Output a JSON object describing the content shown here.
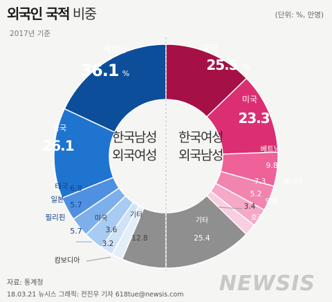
{
  "header": {
    "title_bold": "외국인 국적",
    "title_light": "비중",
    "unit": "(단위: %, 만명)",
    "basis": "2017년 기준"
  },
  "footer": {
    "source": "자료: 통계청",
    "credit": "18.03.21 뉴시스 그래픽: 전진우 기자 618tue@newsis.com",
    "logo": "NEWSIS"
  },
  "chart_data": [
    {
      "type": "pie",
      "title": "한국남성 외국여성",
      "center_label": [
        "한국남성",
        "외국여성"
      ],
      "slices": [
        {
          "label": "베트남",
          "value": 36.1,
          "value_text": "36.1",
          "unit": "%",
          "color": "#0c4e9a"
        },
        {
          "label": "중국",
          "value": 26.1,
          "value_text": "26.1",
          "color": "#1f74d0"
        },
        {
          "label": "태국",
          "value": 6.8,
          "value_text": "6.8",
          "color": "#4f90e0"
        },
        {
          "label": "일본",
          "value": 5.7,
          "value_text": "5.7",
          "color": "#7db0ea"
        },
        {
          "label": "필리핀",
          "value": 5.7,
          "value_text": "5.7",
          "color": "#a7cbf2"
        },
        {
          "label": "미국",
          "value": 3.6,
          "value_text": "3.6",
          "color": "#cfe2f8"
        },
        {
          "label": "캄보디아",
          "value": 3.2,
          "value_text": "3.2",
          "color": "#e4eef9"
        },
        {
          "label": "기타",
          "value": 12.8,
          "value_text": "12.8",
          "color": "#8f8f8f"
        }
      ]
    },
    {
      "type": "pie",
      "title": "한국여성 외국남성",
      "center_label": [
        "한국여성",
        "외국남성"
      ],
      "slices": [
        {
          "label": "중국",
          "value": 25.5,
          "value_text": "25.5",
          "unit": "%",
          "color": "#a51146"
        },
        {
          "label": "미국",
          "value": 23.3,
          "value_text": "23.3",
          "color": "#dc2e72"
        },
        {
          "label": "베트남",
          "value": 9.8,
          "value_text": "9.8",
          "color": "#ee6199"
        },
        {
          "label": "캐나다",
          "value": 7.3,
          "value_text": "7.3",
          "color": "#f185b0"
        },
        {
          "label": "일본",
          "value": 5.2,
          "value_text": "5.2",
          "color": "#f5a8c8"
        },
        {
          "label": "호주",
          "value": 3.4,
          "value_text": "3.4",
          "color": "#f9cede"
        },
        {
          "label": "기타",
          "value": 25.4,
          "value_text": "25.4",
          "color": "#8f8f8f"
        }
      ]
    }
  ]
}
